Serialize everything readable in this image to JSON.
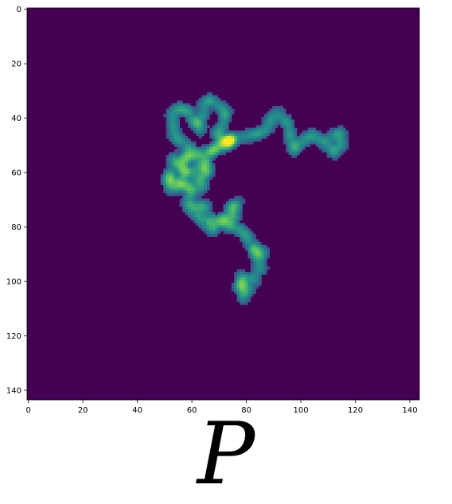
{
  "caption": "P",
  "colors": {
    "background": "#440154",
    "low": "#3b528b",
    "mid": "#21918c",
    "high": "#5ec962",
    "peak": "#fde725"
  },
  "chart_data": {
    "type": "heatmap",
    "colormap": "viridis",
    "x_ticks": [
      0,
      20,
      40,
      60,
      80,
      100,
      120,
      140
    ],
    "y_ticks": [
      0,
      20,
      40,
      60,
      80,
      100,
      120,
      140
    ],
    "xlim": [
      0,
      144
    ],
    "ylim": [
      144,
      0
    ],
    "xlabel": "",
    "ylabel": "",
    "title": "",
    "grid": false,
    "path": [
      [
        110,
        48
      ],
      [
        114,
        45
      ],
      [
        115,
        50
      ],
      [
        112,
        53
      ],
      [
        108,
        48
      ],
      [
        104,
        46
      ],
      [
        100,
        50
      ],
      [
        97,
        52
      ],
      [
        96,
        47
      ],
      [
        95,
        42
      ],
      [
        92,
        38
      ],
      [
        89,
        40
      ],
      [
        87,
        44
      ],
      [
        84,
        46
      ],
      [
        80,
        47
      ],
      [
        76,
        47
      ],
      [
        73,
        48
      ],
      [
        70,
        50
      ],
      [
        67,
        52
      ],
      [
        65,
        56
      ],
      [
        66,
        60
      ],
      [
        64,
        56
      ],
      [
        60,
        52
      ],
      [
        57,
        49
      ],
      [
        54,
        47
      ],
      [
        53,
        43
      ],
      [
        53,
        38
      ],
      [
        56,
        36
      ],
      [
        59,
        38
      ],
      [
        61,
        42
      ],
      [
        64,
        40
      ],
      [
        64,
        35
      ],
      [
        66,
        33
      ],
      [
        70,
        35
      ],
      [
        73,
        38
      ],
      [
        71,
        43
      ],
      [
        69,
        46
      ],
      [
        72,
        49
      ],
      [
        75,
        48
      ],
      [
        73,
        50
      ],
      [
        68,
        52
      ],
      [
        63,
        53
      ],
      [
        58,
        55
      ],
      [
        55,
        57
      ],
      [
        52,
        60
      ],
      [
        51,
        63
      ],
      [
        53,
        66
      ],
      [
        56,
        64
      ],
      [
        58,
        61
      ],
      [
        62,
        58
      ],
      [
        65,
        60
      ],
      [
        64,
        65
      ],
      [
        60,
        68
      ],
      [
        58,
        72
      ],
      [
        62,
        76
      ],
      [
        65,
        79
      ],
      [
        68,
        81
      ],
      [
        70,
        78
      ],
      [
        73,
        76
      ],
      [
        74,
        72
      ],
      [
        77,
        71
      ],
      [
        75,
        77
      ],
      [
        73,
        80
      ],
      [
        76,
        80
      ],
      [
        79,
        82
      ],
      [
        81,
        85
      ],
      [
        83,
        90
      ],
      [
        85,
        95
      ],
      [
        82,
        100
      ],
      [
        79,
        98
      ],
      [
        78,
        103
      ],
      [
        79,
        107
      ]
    ],
    "hotspots": [
      [
        52,
        62
      ],
      [
        55,
        63
      ],
      [
        57,
        65
      ],
      [
        56,
        58
      ],
      [
        58,
        60
      ],
      [
        62,
        63
      ],
      [
        74,
        49
      ],
      [
        72,
        48
      ],
      [
        61,
        72
      ],
      [
        64,
        73
      ],
      [
        67,
        77
      ],
      [
        71,
        78
      ],
      [
        83,
        88
      ],
      [
        85,
        90
      ],
      [
        80,
        103
      ],
      [
        78,
        101
      ],
      [
        58,
        54
      ],
      [
        54,
        55
      ],
      [
        63,
        44
      ],
      [
        59,
        66
      ]
    ]
  }
}
